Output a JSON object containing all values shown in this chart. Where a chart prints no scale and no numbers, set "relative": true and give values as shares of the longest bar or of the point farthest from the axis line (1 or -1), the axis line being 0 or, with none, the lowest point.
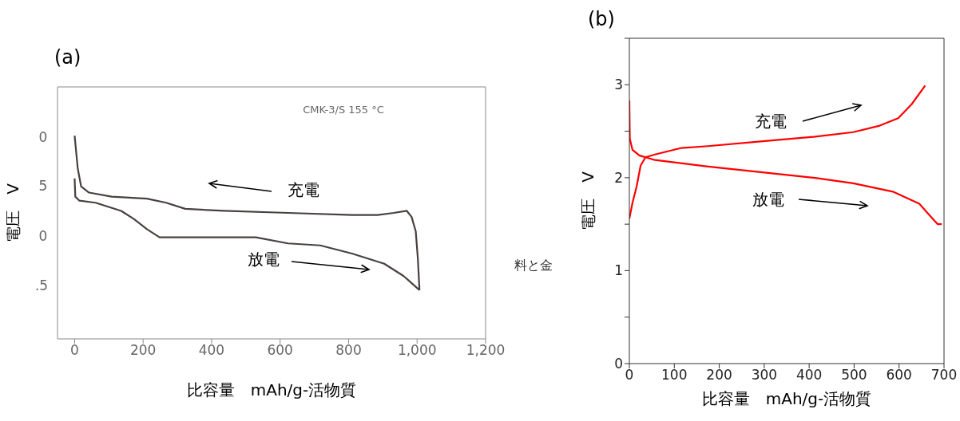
{
  "chart_data": [
    {
      "type": "line",
      "title": "(a)",
      "xlabel": "比容量　mAh/g-活物質",
      "ylabel": "電圧　V",
      "relative": true,
      "xlim": [
        -50,
        1200
      ],
      "xticks": [
        0,
        200,
        400,
        600,
        800,
        {
          "value": 1000,
          "label": "1,000"
        },
        {
          "value": 1200,
          "label": "1,200"
        }
      ],
      "grid": false,
      "legend": false,
      "marker": "none",
      "line_style": "solid",
      "annotations": [
        "CMK-3/S 155 °C",
        "充電",
        "放電",
        "料と金",
        "0",
        "5",
        "0",
        ".5"
      ],
      "series": [
        {
          "color": "#4a4040",
          "x": [
            0,
            9,
            19,
            42,
            108,
            211,
            267,
            323,
            436,
            623,
            810,
            885,
            932,
            970,
            984,
            996,
            1002,
            1007
          ],
          "values": [
            1,
            0.84,
            0.75,
            0.72,
            0.7,
            0.69,
            0.67,
            0.64,
            0.63,
            0.62,
            0.61,
            0.61,
            0.62,
            0.63,
            0.6,
            0.53,
            0.4,
            0.24
          ]
        },
        {
          "color": "#4a4040",
          "x": [
            0,
            2,
            14,
            61,
            136,
            173,
            211,
            248,
            342,
            529,
            623,
            717,
            810,
            904,
            960,
            1007
          ],
          "values": [
            0.79,
            0.7,
            0.68,
            0.67,
            0.63,
            0.59,
            0.54,
            0.5,
            0.5,
            0.5,
            0.47,
            0.46,
            0.42,
            0.37,
            0.31,
            0.24
          ]
        }
      ]
    },
    {
      "type": "line",
      "title": "(b)",
      "xlabel": "比容量　mAh/g-活物質",
      "ylabel": "電圧　V",
      "xlim": [
        0,
        700
      ],
      "ylim": [
        0,
        3.5
      ],
      "xticks": [
        0,
        100,
        200,
        300,
        400,
        500,
        600,
        700
      ],
      "yticks": [
        0,
        {
          "value": 0.5,
          "label": null
        },
        1,
        {
          "value": 1.5,
          "label": null
        },
        2,
        {
          "value": 2.5,
          "label": null
        },
        3,
        {
          "value": 3.5,
          "label": null
        }
      ],
      "grid": false,
      "legend": false,
      "marker": "none",
      "line_style": "solid",
      "annotations": [
        "充電",
        "放電"
      ],
      "series": [
        {
          "color": "#ff0000",
          "x": [
            0,
            7,
            16,
            25,
            36,
            57,
            116,
            175,
            292,
            410,
            498,
            557,
            598,
            628,
            658
          ],
          "values": [
            1.56,
            1.73,
            1.9,
            2.13,
            2.22,
            2.25,
            2.32,
            2.34,
            2.39,
            2.44,
            2.49,
            2.56,
            2.64,
            2.79,
            2.99
          ]
        },
        {
          "color": "#ff0000",
          "x": [
            0,
            1,
            7,
            22,
            57,
            175,
            292,
            410,
            498,
            586,
            645,
            669,
            686,
            695
          ],
          "values": [
            2.83,
            2.42,
            2.3,
            2.24,
            2.19,
            2.12,
            2.06,
            2,
            1.94,
            1.85,
            1.72,
            1.59,
            1.5,
            1.5
          ]
        }
      ]
    }
  ]
}
